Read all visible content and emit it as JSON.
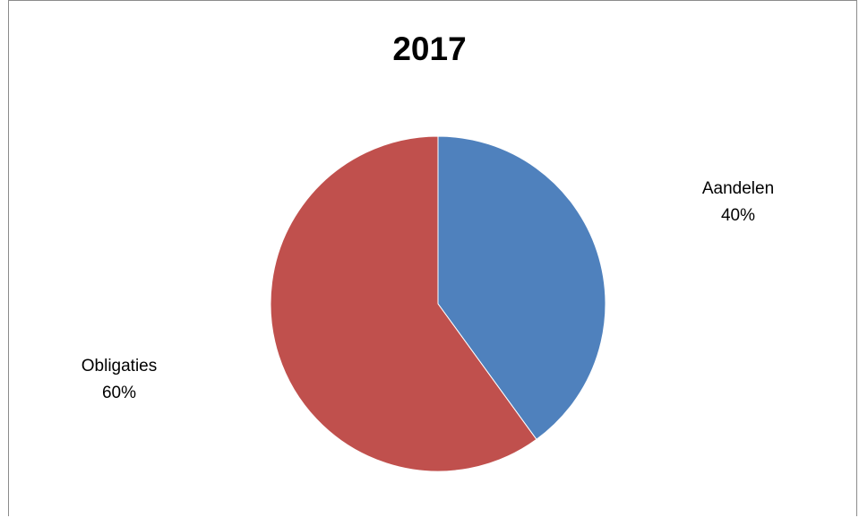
{
  "chart_data": {
    "type": "pie",
    "title": "2017",
    "slices": [
      {
        "label": "Aandelen",
        "value": 40,
        "value_label": "40%",
        "color": "#4F81BD"
      },
      {
        "label": "Obligaties",
        "value": 60,
        "value_label": "60%",
        "color": "#C0504D"
      }
    ],
    "start_angle": "12 o'clock",
    "direction": "clockwise",
    "legend": "none",
    "data_labels": "outside"
  }
}
